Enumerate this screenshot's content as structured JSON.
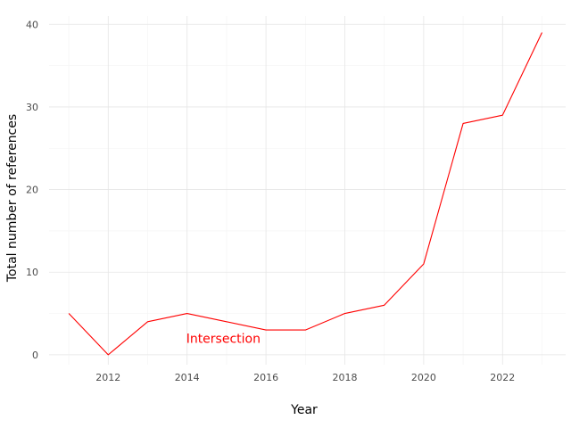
{
  "chart_data": {
    "type": "line",
    "title": "",
    "xlabel": "Year",
    "ylabel": "Total number of references",
    "xlim": [
      2010.5,
      2023.6
    ],
    "ylim": [
      -1.2,
      41
    ],
    "x_ticks": [
      2012,
      2014,
      2016,
      2018,
      2020,
      2022
    ],
    "y_ticks": [
      0,
      10,
      20,
      30,
      40
    ],
    "grid": true,
    "legend": "none",
    "series": [
      {
        "color": "#ff0000",
        "x": [
          2011,
          2012,
          2013,
          2014,
          2015,
          2016,
          2017,
          2018,
          2019,
          2020,
          2021,
          2022,
          2023
        ],
        "y": [
          5,
          0,
          4,
          5,
          4,
          3,
          3,
          5,
          6,
          11,
          28,
          29,
          39
        ]
      }
    ],
    "annotations": [
      {
        "text": "Intersection",
        "x": 2014,
        "y": 2,
        "color": "#ff0000"
      }
    ]
  }
}
